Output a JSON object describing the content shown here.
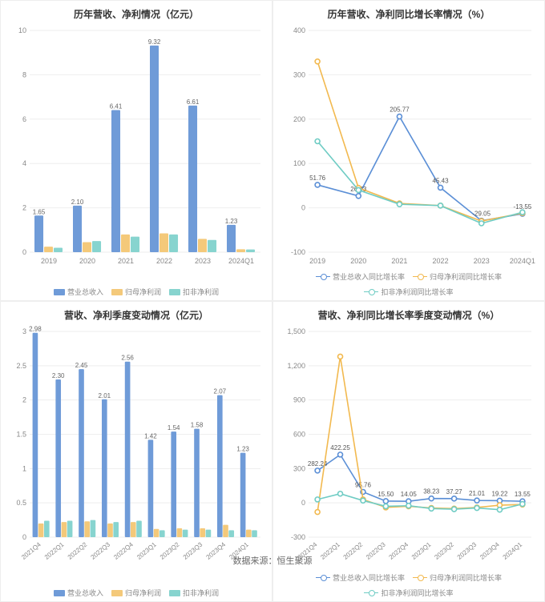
{
  "colors": {
    "blue": "#6f9bd8",
    "blue_line": "#5b8fd6",
    "orange": "#f4c97a",
    "orange_line": "#f2b94f",
    "teal": "#87d4cf",
    "teal_line": "#6fccc4",
    "grid": "#eeeeee",
    "axis_text": "#888888",
    "bg": "#ffffff"
  },
  "footer": "数据来源：恒生聚源",
  "panels": {
    "topLeft": {
      "title": "历年营收、净利情况（亿元）",
      "type": "bar",
      "categories": [
        "2019",
        "2020",
        "2021",
        "2022",
        "2023",
        "2024Q1"
      ],
      "ylim": [
        0,
        10
      ],
      "ytick_step": 2,
      "title_fontsize": 12,
      "axis_fontsize": 9,
      "bar_label_fontsize": 8,
      "series": [
        {
          "name": "营业总收入",
          "color": "#6f9bd8",
          "values": [
            1.65,
            2.1,
            6.41,
            9.32,
            6.61,
            1.23
          ],
          "show_label": true
        },
        {
          "name": "归母净利润",
          "color": "#f4c97a",
          "values": [
            0.25,
            0.45,
            0.8,
            0.85,
            0.6,
            0.13
          ],
          "show_label": false
        },
        {
          "name": "扣非净利润",
          "color": "#87d4cf",
          "values": [
            0.2,
            0.5,
            0.7,
            0.8,
            0.55,
            0.12
          ],
          "show_label": false
        }
      ],
      "legend": [
        "营业总收入",
        "归母净利润",
        "扣非净利润"
      ]
    },
    "topRight": {
      "title": "历年营收、净利同比增长率情况（%）",
      "type": "line",
      "categories": [
        "2019",
        "2020",
        "2021",
        "2022",
        "2023",
        "2024Q1"
      ],
      "ylim": [
        -100,
        400
      ],
      "ytick_step": 100,
      "title_fontsize": 12,
      "axis_fontsize": 9,
      "point_label_fontsize": 8,
      "series": [
        {
          "name": "营业总收入同比增长率",
          "color": "#5b8fd6",
          "values": [
            51.76,
            26.73,
            205.77,
            45.43,
            -29.05,
            -13.55
          ],
          "show_label": true
        },
        {
          "name": "归母净利润同比增长率",
          "color": "#f2b94f",
          "values": [
            330,
            45,
            10,
            5,
            -30,
            -12
          ],
          "show_label": false
        },
        {
          "name": "扣非净利润同比增长率",
          "color": "#6fccc4",
          "values": [
            150,
            40,
            8,
            5,
            -35,
            -10
          ],
          "show_label": false
        }
      ],
      "legend": [
        "营业总收入同比增长率",
        "归母净利润同比增长率",
        "扣非净利润同比增长率"
      ]
    },
    "bottomLeft": {
      "title": "营收、净利季度变动情况（亿元）",
      "type": "bar",
      "categories": [
        "2021Q4",
        "2022Q1",
        "2022Q2",
        "2022Q3",
        "2022Q4",
        "2023Q1",
        "2023Q2",
        "2023Q3",
        "2023Q4",
        "2024Q1"
      ],
      "rotate_x": true,
      "ylim": [
        0,
        3
      ],
      "ytick_step": 0.5,
      "title_fontsize": 12,
      "axis_fontsize": 8,
      "bar_label_fontsize": 8,
      "series": [
        {
          "name": "营业总收入",
          "color": "#6f9bd8",
          "values": [
            2.98,
            2.3,
            2.45,
            2.01,
            2.56,
            1.42,
            1.54,
            1.58,
            2.07,
            1.23
          ],
          "show_label": true
        },
        {
          "name": "归母净利润",
          "color": "#f4c97a",
          "values": [
            0.2,
            0.22,
            0.23,
            0.2,
            0.22,
            0.12,
            0.13,
            0.13,
            0.18,
            0.11
          ],
          "show_label": false
        },
        {
          "name": "扣非净利润",
          "color": "#87d4cf",
          "values": [
            0.24,
            0.24,
            0.25,
            0.22,
            0.24,
            0.1,
            0.11,
            0.11,
            0.1,
            0.1
          ],
          "show_label": false
        }
      ],
      "legend": [
        "营业总收入",
        "归母净利润",
        "扣非净利润"
      ]
    },
    "bottomRight": {
      "title": "营收、净利同比增长率季度变动情况（%）",
      "type": "line",
      "categories": [
        "2021Q4",
        "2022Q1",
        "2022Q2",
        "2022Q3",
        "2022Q4",
        "2023Q1",
        "2023Q2",
        "2023Q3",
        "2023Q4",
        "2024Q1"
      ],
      "rotate_x": true,
      "ylim": [
        -300,
        1500
      ],
      "ytick_step": 300,
      "title_fontsize": 12,
      "axis_fontsize": 8,
      "point_label_fontsize": 8,
      "series": [
        {
          "name": "营业总收入同比增长率",
          "color": "#5b8fd6",
          "values": [
            282.24,
            422.25,
            95.76,
            15.5,
            14.05,
            38.23,
            37.27,
            21.01,
            19.22,
            13.55
          ],
          "show_label": true
        },
        {
          "name": "归母净利润同比增长率",
          "color": "#f2b94f",
          "values": [
            -80,
            1280,
            30,
            -40,
            -30,
            -45,
            -50,
            -40,
            -20,
            -15
          ],
          "show_label": false
        },
        {
          "name": "扣非净利润同比增长率",
          "color": "#6fccc4",
          "values": [
            30,
            80,
            20,
            -30,
            -25,
            -50,
            -55,
            -45,
            -60,
            -10
          ],
          "show_label": false
        }
      ],
      "legend": [
        "营业总收入同比增长率",
        "归母净利润同比增长率",
        "扣非净利润同比增长率"
      ]
    }
  }
}
